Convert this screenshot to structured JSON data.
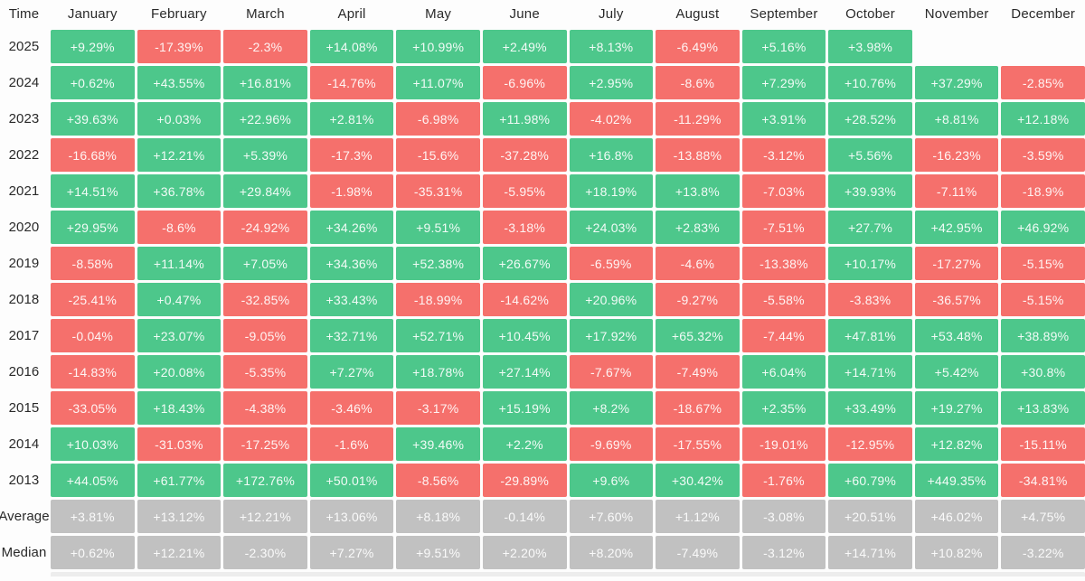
{
  "header": {
    "corner": "Time",
    "months": [
      "January",
      "February",
      "March",
      "April",
      "May",
      "June",
      "July",
      "August",
      "September",
      "October",
      "November",
      "December"
    ]
  },
  "rows": [
    {
      "label": "2025",
      "kind": "year",
      "cells": [
        "+9.29%",
        "-17.39%",
        "-2.3%",
        "+14.08%",
        "+10.99%",
        "+2.49%",
        "+8.13%",
        "-6.49%",
        "+5.16%",
        "+3.98%",
        null,
        null
      ]
    },
    {
      "label": "2024",
      "kind": "year",
      "cells": [
        "+0.62%",
        "+43.55%",
        "+16.81%",
        "-14.76%",
        "+11.07%",
        "-6.96%",
        "+2.95%",
        "-8.6%",
        "+7.29%",
        "+10.76%",
        "+37.29%",
        "-2.85%"
      ]
    },
    {
      "label": "2023",
      "kind": "year",
      "cells": [
        "+39.63%",
        "+0.03%",
        "+22.96%",
        "+2.81%",
        "-6.98%",
        "+11.98%",
        "-4.02%",
        "-11.29%",
        "+3.91%",
        "+28.52%",
        "+8.81%",
        "+12.18%"
      ]
    },
    {
      "label": "2022",
      "kind": "year",
      "cells": [
        "-16.68%",
        "+12.21%",
        "+5.39%",
        "-17.3%",
        "-15.6%",
        "-37.28%",
        "+16.8%",
        "-13.88%",
        "-3.12%",
        "+5.56%",
        "-16.23%",
        "-3.59%"
      ]
    },
    {
      "label": "2021",
      "kind": "year",
      "cells": [
        "+14.51%",
        "+36.78%",
        "+29.84%",
        "-1.98%",
        "-35.31%",
        "-5.95%",
        "+18.19%",
        "+13.8%",
        "-7.03%",
        "+39.93%",
        "-7.11%",
        "-18.9%"
      ]
    },
    {
      "label": "2020",
      "kind": "year",
      "cells": [
        "+29.95%",
        "-8.6%",
        "-24.92%",
        "+34.26%",
        "+9.51%",
        "-3.18%",
        "+24.03%",
        "+2.83%",
        "-7.51%",
        "+27.7%",
        "+42.95%",
        "+46.92%"
      ]
    },
    {
      "label": "2019",
      "kind": "year",
      "cells": [
        "-8.58%",
        "+11.14%",
        "+7.05%",
        "+34.36%",
        "+52.38%",
        "+26.67%",
        "-6.59%",
        "-4.6%",
        "-13.38%",
        "+10.17%",
        "-17.27%",
        "-5.15%"
      ]
    },
    {
      "label": "2018",
      "kind": "year",
      "cells": [
        "-25.41%",
        "+0.47%",
        "-32.85%",
        "+33.43%",
        "-18.99%",
        "-14.62%",
        "+20.96%",
        "-9.27%",
        "-5.58%",
        "-3.83%",
        "-36.57%",
        "-5.15%"
      ]
    },
    {
      "label": "2017",
      "kind": "year",
      "cells": [
        "-0.04%",
        "+23.07%",
        "-9.05%",
        "+32.71%",
        "+52.71%",
        "+10.45%",
        "+17.92%",
        "+65.32%",
        "-7.44%",
        "+47.81%",
        "+53.48%",
        "+38.89%"
      ]
    },
    {
      "label": "2016",
      "kind": "year",
      "cells": [
        "-14.83%",
        "+20.08%",
        "-5.35%",
        "+7.27%",
        "+18.78%",
        "+27.14%",
        "-7.67%",
        "-7.49%",
        "+6.04%",
        "+14.71%",
        "+5.42%",
        "+30.8%"
      ]
    },
    {
      "label": "2015",
      "kind": "year",
      "cells": [
        "-33.05%",
        "+18.43%",
        "-4.38%",
        "-3.46%",
        "-3.17%",
        "+15.19%",
        "+8.2%",
        "-18.67%",
        "+2.35%",
        "+33.49%",
        "+19.27%",
        "+13.83%"
      ]
    },
    {
      "label": "2014",
      "kind": "year",
      "cells": [
        "+10.03%",
        "-31.03%",
        "-17.25%",
        "-1.6%",
        "+39.46%",
        "+2.2%",
        "-9.69%",
        "-17.55%",
        "-19.01%",
        "-12.95%",
        "+12.82%",
        "-15.11%"
      ]
    },
    {
      "label": "2013",
      "kind": "year",
      "cells": [
        "+44.05%",
        "+61.77%",
        "+172.76%",
        "+50.01%",
        "-8.56%",
        "-29.89%",
        "+9.6%",
        "+30.42%",
        "-1.76%",
        "+60.79%",
        "+449.35%",
        "-34.81%"
      ]
    },
    {
      "label": "Average",
      "kind": "summary",
      "cells": [
        "+3.81%",
        "+13.12%",
        "+12.21%",
        "+13.06%",
        "+8.18%",
        "-0.14%",
        "+7.60%",
        "+1.12%",
        "-3.08%",
        "+20.51%",
        "+46.02%",
        "+4.75%"
      ]
    },
    {
      "label": "Median",
      "kind": "summary",
      "cells": [
        "+0.62%",
        "+12.21%",
        "-2.30%",
        "+7.27%",
        "+9.51%",
        "+2.20%",
        "+8.20%",
        "-7.49%",
        "-3.12%",
        "+14.71%",
        "+10.82%",
        "-3.22%"
      ]
    }
  ],
  "colors": {
    "positive": "#4dc78b",
    "negative": "#f5706c",
    "summary": "#c1c1c1",
    "cell_text": "rgba(255,255,255,0.92)",
    "label_text": "#2a2a2a",
    "background": "#fdfdfd"
  },
  "chart_data": {
    "type": "heatmap",
    "corner_label": "Time",
    "columns": [
      "January",
      "February",
      "March",
      "April",
      "May",
      "June",
      "July",
      "August",
      "September",
      "October",
      "November",
      "December"
    ],
    "value_unit": "%",
    "legend": "green = positive monthly return, red = negative monthly return, gray = Average/Median summary rows",
    "rows": [
      {
        "label": "2025",
        "values": [
          9.29,
          -17.39,
          -2.3,
          14.08,
          10.99,
          2.49,
          8.13,
          -6.49,
          5.16,
          3.98,
          null,
          null
        ]
      },
      {
        "label": "2024",
        "values": [
          0.62,
          43.55,
          16.81,
          -14.76,
          11.07,
          -6.96,
          2.95,
          -8.6,
          7.29,
          10.76,
          37.29,
          -2.85
        ]
      },
      {
        "label": "2023",
        "values": [
          39.63,
          0.03,
          22.96,
          2.81,
          -6.98,
          11.98,
          -4.02,
          -11.29,
          3.91,
          28.52,
          8.81,
          12.18
        ]
      },
      {
        "label": "2022",
        "values": [
          -16.68,
          12.21,
          5.39,
          -17.3,
          -15.6,
          -37.28,
          16.8,
          -13.88,
          -3.12,
          5.56,
          -16.23,
          -3.59
        ]
      },
      {
        "label": "2021",
        "values": [
          14.51,
          36.78,
          29.84,
          -1.98,
          -35.31,
          -5.95,
          18.19,
          13.8,
          -7.03,
          39.93,
          -7.11,
          -18.9
        ]
      },
      {
        "label": "2020",
        "values": [
          29.95,
          -8.6,
          -24.92,
          34.26,
          9.51,
          -3.18,
          24.03,
          2.83,
          -7.51,
          27.7,
          42.95,
          46.92
        ]
      },
      {
        "label": "2019",
        "values": [
          -8.58,
          11.14,
          7.05,
          34.36,
          52.38,
          26.67,
          -6.59,
          -4.6,
          -13.38,
          10.17,
          -17.27,
          -5.15
        ]
      },
      {
        "label": "2018",
        "values": [
          -25.41,
          0.47,
          -32.85,
          33.43,
          -18.99,
          -14.62,
          20.96,
          -9.27,
          -5.58,
          -3.83,
          -36.57,
          -5.15
        ]
      },
      {
        "label": "2017",
        "values": [
          -0.04,
          23.07,
          -9.05,
          32.71,
          52.71,
          10.45,
          17.92,
          65.32,
          -7.44,
          47.81,
          53.48,
          38.89
        ]
      },
      {
        "label": "2016",
        "values": [
          -14.83,
          20.08,
          -5.35,
          7.27,
          18.78,
          27.14,
          -7.67,
          -7.49,
          6.04,
          14.71,
          5.42,
          30.8
        ]
      },
      {
        "label": "2015",
        "values": [
          -33.05,
          18.43,
          -4.38,
          -3.46,
          -3.17,
          15.19,
          8.2,
          -18.67,
          2.35,
          33.49,
          19.27,
          13.83
        ]
      },
      {
        "label": "2014",
        "values": [
          10.03,
          -31.03,
          -17.25,
          -1.6,
          39.46,
          2.2,
          -9.69,
          -17.55,
          -19.01,
          -12.95,
          12.82,
          -15.11
        ]
      },
      {
        "label": "2013",
        "values": [
          44.05,
          61.77,
          172.76,
          50.01,
          -8.56,
          -29.89,
          9.6,
          30.42,
          -1.76,
          60.79,
          449.35,
          -34.81
        ]
      },
      {
        "label": "Average",
        "values": [
          3.81,
          13.12,
          12.21,
          13.06,
          8.18,
          -0.14,
          7.6,
          1.12,
          -3.08,
          20.51,
          46.02,
          4.75
        ]
      },
      {
        "label": "Median",
        "values": [
          0.62,
          12.21,
          -2.3,
          7.27,
          9.51,
          2.2,
          8.2,
          -7.49,
          -3.12,
          14.71,
          10.82,
          -3.22
        ]
      }
    ]
  }
}
